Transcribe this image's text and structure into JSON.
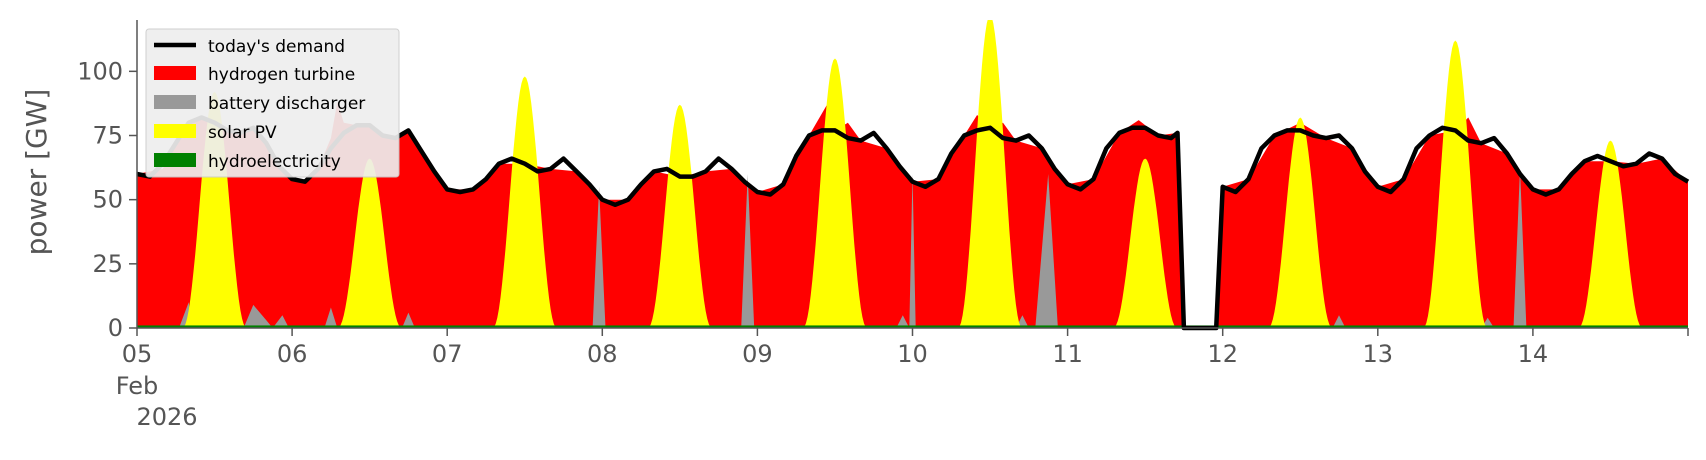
{
  "chart_data": {
    "type": "area",
    "title": "",
    "xlabel": "",
    "ylabel": "power [GW]",
    "x_start": "2026-02-05 00:00",
    "x_end": "2026-02-14 24:00",
    "ylim": [
      0,
      120
    ],
    "yticks": [
      0,
      25,
      50,
      75,
      100
    ],
    "xtick_labels": [
      "05",
      "06",
      "07",
      "08",
      "09",
      "10",
      "11",
      "12",
      "13",
      "14"
    ],
    "xtick_sublabels": [
      "Feb",
      "2026"
    ],
    "grid": false,
    "legend_position": "top-left",
    "colors": {
      "demand": "#000000",
      "hydrogen_turbine": "#ff0000",
      "battery_discharger": "#999999",
      "solar_pv": "#ffff00",
      "hydroelectricity": "#008000",
      "axis": "#555555"
    },
    "series": [
      {
        "name": "today's demand",
        "kind": "line",
        "points": [
          [
            "2026-02-05 00:00",
            60
          ],
          [
            "2026-02-05 02:00",
            59
          ],
          [
            "2026-02-05 04:00",
            64
          ],
          [
            "2026-02-05 06:00",
            72
          ],
          [
            "2026-02-05 08:00",
            80
          ],
          [
            "2026-02-05 10:00",
            82
          ],
          [
            "2026-02-05 12:00",
            80
          ],
          [
            "2026-02-05 14:00",
            77
          ],
          [
            "2026-02-05 16:00",
            76
          ],
          [
            "2026-02-05 18:00",
            78
          ],
          [
            "2026-02-05 20:00",
            72
          ],
          [
            "2026-02-05 22:00",
            63
          ],
          [
            "2026-02-06 00:00",
            58
          ],
          [
            "2026-02-06 02:00",
            57
          ],
          [
            "2026-02-06 04:00",
            62
          ],
          [
            "2026-02-06 06:00",
            70
          ],
          [
            "2026-02-06 08:00",
            76
          ],
          [
            "2026-02-06 10:00",
            79
          ],
          [
            "2026-02-06 12:00",
            79
          ],
          [
            "2026-02-06 14:00",
            75
          ],
          [
            "2026-02-06 16:00",
            74
          ],
          [
            "2026-02-06 18:00",
            77
          ],
          [
            "2026-02-06 20:00",
            69
          ],
          [
            "2026-02-06 22:00",
            61
          ],
          [
            "2026-02-07 00:00",
            54
          ],
          [
            "2026-02-07 02:00",
            53
          ],
          [
            "2026-02-07 04:00",
            54
          ],
          [
            "2026-02-07 06:00",
            58
          ],
          [
            "2026-02-07 08:00",
            64
          ],
          [
            "2026-02-07 10:00",
            66
          ],
          [
            "2026-02-07 12:00",
            64
          ],
          [
            "2026-02-07 14:00",
            61
          ],
          [
            "2026-02-07 16:00",
            62
          ],
          [
            "2026-02-07 18:00",
            66
          ],
          [
            "2026-02-07 20:00",
            61
          ],
          [
            "2026-02-07 22:00",
            56
          ],
          [
            "2026-02-08 00:00",
            50
          ],
          [
            "2026-02-08 02:00",
            48
          ],
          [
            "2026-02-08 04:00",
            50
          ],
          [
            "2026-02-08 06:00",
            56
          ],
          [
            "2026-02-08 08:00",
            61
          ],
          [
            "2026-02-08 10:00",
            62
          ],
          [
            "2026-02-08 12:00",
            59
          ],
          [
            "2026-02-08 14:00",
            59
          ],
          [
            "2026-02-08 16:00",
            61
          ],
          [
            "2026-02-08 18:00",
            66
          ],
          [
            "2026-02-08 20:00",
            62
          ],
          [
            "2026-02-08 22:00",
            57
          ],
          [
            "2026-02-09 00:00",
            53
          ],
          [
            "2026-02-09 02:00",
            52
          ],
          [
            "2026-02-09 04:00",
            56
          ],
          [
            "2026-02-09 06:00",
            67
          ],
          [
            "2026-02-09 08:00",
            75
          ],
          [
            "2026-02-09 10:00",
            77
          ],
          [
            "2026-02-09 12:00",
            77
          ],
          [
            "2026-02-09 14:00",
            74
          ],
          [
            "2026-02-09 16:00",
            73
          ],
          [
            "2026-02-09 18:00",
            76
          ],
          [
            "2026-02-09 20:00",
            70
          ],
          [
            "2026-02-09 22:00",
            63
          ],
          [
            "2026-02-10 00:00",
            57
          ],
          [
            "2026-02-10 02:00",
            55
          ],
          [
            "2026-02-10 04:00",
            58
          ],
          [
            "2026-02-10 06:00",
            68
          ],
          [
            "2026-02-10 08:00",
            75
          ],
          [
            "2026-02-10 10:00",
            77
          ],
          [
            "2026-02-10 12:00",
            78
          ],
          [
            "2026-02-10 14:00",
            74
          ],
          [
            "2026-02-10 16:00",
            73
          ],
          [
            "2026-02-10 18:00",
            75
          ],
          [
            "2026-02-10 20:00",
            70
          ],
          [
            "2026-02-10 22:00",
            62
          ],
          [
            "2026-02-11 00:00",
            56
          ],
          [
            "2026-02-11 02:00",
            54
          ],
          [
            "2026-02-11 04:00",
            58
          ],
          [
            "2026-02-11 06:00",
            70
          ],
          [
            "2026-02-11 08:00",
            76
          ],
          [
            "2026-02-11 10:00",
            78
          ],
          [
            "2026-02-11 12:00",
            78
          ],
          [
            "2026-02-11 14:00",
            75
          ],
          [
            "2026-02-11 16:00",
            74
          ],
          [
            "2026-02-11 17:00",
            76
          ],
          [
            "2026-02-11 18:00",
            0
          ],
          [
            "2026-02-11 23:00",
            0
          ],
          [
            "2026-02-12 00:00",
            55
          ],
          [
            "2026-02-12 02:00",
            53
          ],
          [
            "2026-02-12 04:00",
            58
          ],
          [
            "2026-02-12 06:00",
            70
          ],
          [
            "2026-02-12 08:00",
            75
          ],
          [
            "2026-02-12 10:00",
            77
          ],
          [
            "2026-02-12 12:00",
            77
          ],
          [
            "2026-02-12 14:00",
            75
          ],
          [
            "2026-02-12 16:00",
            74
          ],
          [
            "2026-02-12 18:00",
            75
          ],
          [
            "2026-02-12 20:00",
            70
          ],
          [
            "2026-02-12 22:00",
            61
          ],
          [
            "2026-02-13 00:00",
            55
          ],
          [
            "2026-02-13 02:00",
            53
          ],
          [
            "2026-02-13 04:00",
            58
          ],
          [
            "2026-02-13 06:00",
            70
          ],
          [
            "2026-02-13 08:00",
            75
          ],
          [
            "2026-02-13 10:00",
            78
          ],
          [
            "2026-02-13 12:00",
            77
          ],
          [
            "2026-02-13 14:00",
            73
          ],
          [
            "2026-02-13 16:00",
            72
          ],
          [
            "2026-02-13 18:00",
            74
          ],
          [
            "2026-02-13 20:00",
            68
          ],
          [
            "2026-02-13 22:00",
            60
          ],
          [
            "2026-02-14 00:00",
            54
          ],
          [
            "2026-02-14 02:00",
            52
          ],
          [
            "2026-02-14 04:00",
            54
          ],
          [
            "2026-02-14 06:00",
            60
          ],
          [
            "2026-02-14 08:00",
            65
          ],
          [
            "2026-02-14 10:00",
            67
          ],
          [
            "2026-02-14 12:00",
            65
          ],
          [
            "2026-02-14 14:00",
            63
          ],
          [
            "2026-02-14 16:00",
            64
          ],
          [
            "2026-02-14 18:00",
            68
          ],
          [
            "2026-02-14 20:00",
            66
          ],
          [
            "2026-02-14 22:00",
            60
          ],
          [
            "2026-02-14 24:00",
            57
          ]
        ]
      },
      {
        "name": "hydrogen turbine",
        "kind": "area",
        "description_of_points": "stacked total height",
        "points": [
          [
            "2026-02-05 00:00",
            60
          ],
          [
            "2026-02-05 04:00",
            62
          ],
          [
            "2026-02-05 06:00",
            73
          ],
          [
            "2026-02-05 08:00",
            80
          ],
          [
            "2026-02-05 10:00",
            82
          ],
          [
            "2026-02-05 12:00",
            80
          ],
          [
            "2026-02-05 14:00",
            77
          ],
          [
            "2026-02-05 16:00",
            76
          ],
          [
            "2026-02-05 18:00",
            78
          ],
          [
            "2026-02-05 20:00",
            72
          ],
          [
            "2026-02-05 22:00",
            63
          ],
          [
            "2026-02-06 00:00",
            58
          ],
          [
            "2026-02-06 02:00",
            57
          ],
          [
            "2026-02-06 04:00",
            62
          ],
          [
            "2026-02-06 06:00",
            74
          ],
          [
            "2026-02-06 07:00",
            88
          ],
          [
            "2026-02-06 08:00",
            80
          ],
          [
            "2026-02-06 10:00",
            79
          ],
          [
            "2026-02-06 12:00",
            79
          ],
          [
            "2026-02-06 14:00",
            75
          ],
          [
            "2026-02-06 16:00",
            74
          ],
          [
            "2026-02-06 18:00",
            77
          ],
          [
            "2026-02-06 20:00",
            69
          ],
          [
            "2026-02-06 22:00",
            61
          ],
          [
            "2026-02-07 00:00",
            54
          ],
          [
            "2026-02-07 04:00",
            54
          ],
          [
            "2026-02-07 08:00",
            64
          ],
          [
            "2026-02-07 12:00",
            64
          ],
          [
            "2026-02-07 16:00",
            62
          ],
          [
            "2026-02-07 20:00",
            61
          ],
          [
            "2026-02-08 00:00",
            50
          ],
          [
            "2026-02-08 04:00",
            50
          ],
          [
            "2026-02-08 08:00",
            61
          ],
          [
            "2026-02-08 12:00",
            59
          ],
          [
            "2026-02-08 16:00",
            61
          ],
          [
            "2026-02-08 20:00",
            62
          ],
          [
            "2026-02-09 00:00",
            53
          ],
          [
            "2026-02-09 04:00",
            56
          ],
          [
            "2026-02-09 08:00",
            75
          ],
          [
            "2026-02-09 11:00",
            88
          ],
          [
            "2026-02-09 12:00",
            77
          ],
          [
            "2026-02-09 14:00",
            80
          ],
          [
            "2026-02-09 16:00",
            73
          ],
          [
            "2026-02-09 20:00",
            70
          ],
          [
            "2026-02-10 00:00",
            57
          ],
          [
            "2026-02-10 04:00",
            58
          ],
          [
            "2026-02-10 08:00",
            75
          ],
          [
            "2026-02-10 10:00",
            83
          ],
          [
            "2026-02-10 12:00",
            78
          ],
          [
            "2026-02-10 14:00",
            80
          ],
          [
            "2026-02-10 16:00",
            73
          ],
          [
            "2026-02-10 20:00",
            70
          ],
          [
            "2026-02-11 00:00",
            56
          ],
          [
            "2026-02-11 04:00",
            58
          ],
          [
            "2026-02-11 08:00",
            76
          ],
          [
            "2026-02-11 11:00",
            81
          ],
          [
            "2026-02-11 14:00",
            75
          ],
          [
            "2026-02-11 17:00",
            76
          ],
          [
            "2026-02-11 18:00",
            0
          ],
          [
            "2026-02-11 23:00",
            0
          ],
          [
            "2026-02-12 00:00",
            55
          ],
          [
            "2026-02-12 04:00",
            58
          ],
          [
            "2026-02-12 08:00",
            75
          ],
          [
            "2026-02-12 12:00",
            80
          ],
          [
            "2026-02-12 16:00",
            74
          ],
          [
            "2026-02-12 20:00",
            70
          ],
          [
            "2026-02-13 00:00",
            55
          ],
          [
            "2026-02-13 04:00",
            58
          ],
          [
            "2026-02-13 08:00",
            75
          ],
          [
            "2026-02-13 12:00",
            77
          ],
          [
            "2026-02-13 14:00",
            82
          ],
          [
            "2026-02-13 16:00",
            72
          ],
          [
            "2026-02-13 20:00",
            68
          ],
          [
            "2026-02-14 00:00",
            54
          ],
          [
            "2026-02-14 04:00",
            54
          ],
          [
            "2026-02-14 08:00",
            65
          ],
          [
            "2026-02-14 12:00",
            65
          ],
          [
            "2026-02-14 16:00",
            64
          ],
          [
            "2026-02-14 20:00",
            66
          ],
          [
            "2026-02-14 24:00",
            57
          ]
        ]
      },
      {
        "name": "battery discharger",
        "kind": "area",
        "points": [
          [
            "2026-02-05 06:30",
            0
          ],
          [
            "2026-02-05 08:00",
            10
          ],
          [
            "2026-02-05 08:30",
            0
          ],
          [
            "2026-02-05 16:30",
            0
          ],
          [
            "2026-02-05 18:00",
            9
          ],
          [
            "2026-02-05 20:00",
            3
          ],
          [
            "2026-02-05 21:00",
            0
          ],
          [
            "2026-02-05 22:30",
            5
          ],
          [
            "2026-02-05 23:30",
            0
          ],
          [
            "2026-02-06 05:00",
            0
          ],
          [
            "2026-02-06 06:00",
            8
          ],
          [
            "2026-02-06 07:00",
            0
          ],
          [
            "2026-02-06 17:00",
            0
          ],
          [
            "2026-02-06 18:00",
            6
          ],
          [
            "2026-02-06 19:00",
            0
          ],
          [
            "2026-02-07 22:30",
            0
          ],
          [
            "2026-02-07 23:30",
            55
          ],
          [
            "2026-02-08 00:30",
            0
          ],
          [
            "2026-02-08 21:30",
            0
          ],
          [
            "2026-02-08 22:30",
            60
          ],
          [
            "2026-02-08 23:30",
            0
          ],
          [
            "2026-02-09 21:30",
            0
          ],
          [
            "2026-02-09 22:30",
            5
          ],
          [
            "2026-02-09 23:30",
            0
          ],
          [
            "2026-02-09 23:30",
            0
          ],
          [
            "2026-02-10 00:00",
            60
          ],
          [
            "2026-02-10 00:30",
            0
          ],
          [
            "2026-02-10 16:00",
            0
          ],
          [
            "2026-02-10 17:00",
            5
          ],
          [
            "2026-02-10 18:00",
            0
          ],
          [
            "2026-02-10 19:00",
            0
          ],
          [
            "2026-02-10 21:00",
            60
          ],
          [
            "2026-02-10 22:30",
            0
          ],
          [
            "2026-02-12 17:00",
            0
          ],
          [
            "2026-02-12 18:00",
            5
          ],
          [
            "2026-02-12 19:00",
            0
          ],
          [
            "2026-02-13 16:00",
            0
          ],
          [
            "2026-02-13 17:00",
            4
          ],
          [
            "2026-02-13 18:00",
            0
          ],
          [
            "2026-02-13 21:00",
            0
          ],
          [
            "2026-02-13 22:00",
            62
          ],
          [
            "2026-02-13 23:00",
            0
          ],
          [
            "2026-02-14 22:30",
            0
          ],
          [
            "2026-02-14 24:00",
            12
          ]
        ]
      },
      {
        "name": "solar PV",
        "kind": "area",
        "peaks_GW": [
          [
            "2026-02-05 12:00",
            92
          ],
          [
            "2026-02-06 12:00",
            66
          ],
          [
            "2026-02-07 12:00",
            98
          ],
          [
            "2026-02-08 12:00",
            87
          ],
          [
            "2026-02-09 12:00",
            105
          ],
          [
            "2026-02-10 12:00",
            122
          ],
          [
            "2026-02-11 12:00",
            66
          ],
          [
            "2026-02-12 12:00",
            82
          ],
          [
            "2026-02-13 12:00",
            112
          ],
          [
            "2026-02-14 12:00",
            73
          ]
        ],
        "daylight_hours": [
          "07:00",
          "17:00"
        ]
      },
      {
        "name": "hydroelectricity",
        "kind": "area",
        "level_GW": 1
      }
    ]
  }
}
